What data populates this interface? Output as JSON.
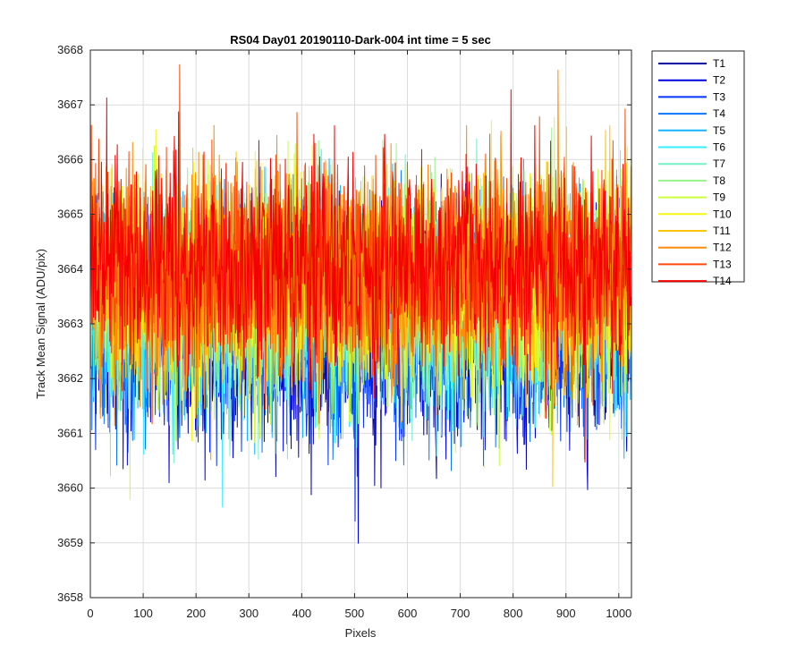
{
  "chart_data": {
    "type": "line",
    "title": "RS04 Day01 20190110-Dark-004 int time = 5 sec",
    "xlabel": "Pixels",
    "ylabel": "Track Mean Signal (ADU/pix)",
    "xlim": [
      0,
      1024
    ],
    "ylim": [
      3658,
      3668
    ],
    "xticks": [
      0,
      100,
      200,
      300,
      400,
      500,
      600,
      700,
      800,
      900,
      1000
    ],
    "yticks": [
      3658,
      3659,
      3660,
      3661,
      3662,
      3663,
      3664,
      3665,
      3666,
      3667,
      3668
    ],
    "grid": true,
    "legend_position": "outside-top-right",
    "n_points": 1024,
    "series": [
      {
        "name": "T1",
        "color": "#0000A3",
        "mean": 3662.9,
        "amplitude": 1.3
      },
      {
        "name": "T2",
        "color": "#0000E0",
        "mean": 3662.9,
        "amplitude": 1.3
      },
      {
        "name": "T3",
        "color": "#0533FF",
        "mean": 3663.0,
        "amplitude": 1.3
      },
      {
        "name": "T4",
        "color": "#0A75FF",
        "mean": 3663.1,
        "amplitude": 1.3
      },
      {
        "name": "T5",
        "color": "#14B4FF",
        "mean": 3663.2,
        "amplitude": 1.3
      },
      {
        "name": "T6",
        "color": "#33F0FF",
        "mean": 3663.3,
        "amplitude": 1.3
      },
      {
        "name": "T7",
        "color": "#72F0C8",
        "mean": 3663.4,
        "amplitude": 1.3
      },
      {
        "name": "T8",
        "color": "#9AF28C",
        "mean": 3663.5,
        "amplitude": 1.3
      },
      {
        "name": "T9",
        "color": "#CCFF3A",
        "mean": 3663.6,
        "amplitude": 1.3
      },
      {
        "name": "T10",
        "color": "#F7F711",
        "mean": 3663.7,
        "amplitude": 1.3
      },
      {
        "name": "T11",
        "color": "#FFC40A",
        "mean": 3663.8,
        "amplitude": 1.3
      },
      {
        "name": "T12",
        "color": "#FF8C0A",
        "mean": 3663.9,
        "amplitude": 1.3
      },
      {
        "name": "T13",
        "color": "#FF4A0A",
        "mean": 3664.0,
        "amplitude": 1.3
      },
      {
        "name": "T14",
        "color": "#F50000",
        "mean": 3664.1,
        "amplitude": 1.3
      }
    ]
  }
}
